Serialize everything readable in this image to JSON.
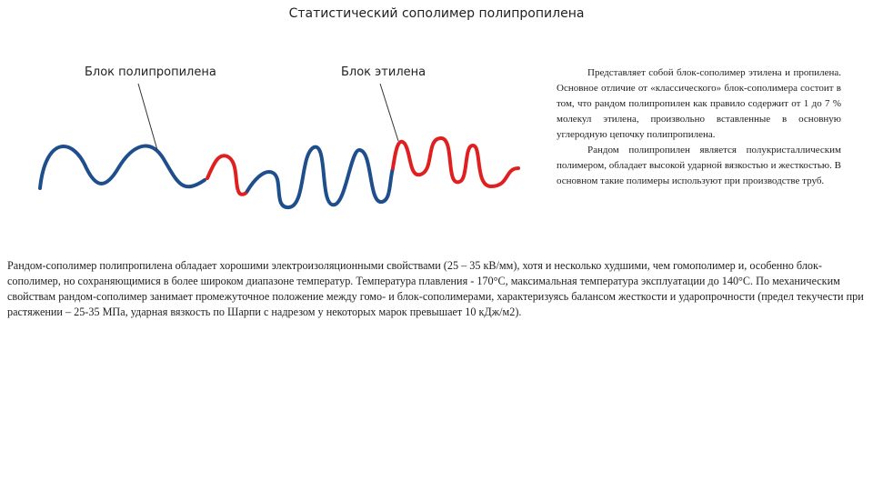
{
  "title": "Статистический сополимер полипропилена",
  "figure": {
    "label_left": "Блок полипропилена",
    "label_right": "Блок этилена"
  },
  "side_text": {
    "paragraphs": [
      "Представляет собой блок-сополимер этилена и пропилена. Основное отличие от «классического» блок-сополимера состоит в том, что рандом полипропилен как правило содержит от 1 до 7 % молекул этилена, произвольно вставленные в основную углеродную цепочку полипропилена.",
      "Рандом полипропилен является полукристаллическим полимером, обладает высокой ударной вязкостью и жесткостью. В основном такие полимеры используют при производстве труб."
    ]
  },
  "body_text": "Рандом-сополимер полипропилена обладает хорошими электроизоляционными свойствами (25 – 35 кВ/мм), хотя и несколько худшими, чем гомополимер и, особенно блок-сополимер, но сохраняющимися в более широком диапазоне температур. Температура плавления - 170°C, максимальная температура эксплуатации до 140°C. По механическим свойствам рандом-сополимер занимает промежуточное положение между гомо- и блок-сополимерами, характеризуясь балансом жесткости и ударопрочности (предел текучести при растяжении – 25-35 МПа, ударная вязкость по Шарпи с надрезом у некоторых марок превышает 10 кДж/м2)."
}
